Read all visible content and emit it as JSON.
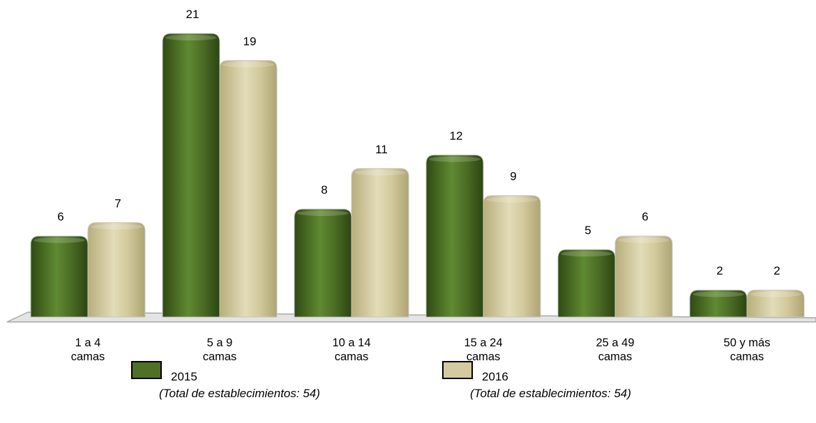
{
  "chart_data": {
    "type": "bar",
    "categories": [
      [
        "1 a 4",
        "camas"
      ],
      [
        "5 a 9",
        "camas"
      ],
      [
        "10 a 14",
        "camas"
      ],
      [
        "15 a 24",
        "camas"
      ],
      [
        "25 a 49",
        "camas"
      ],
      [
        "50 y más",
        "camas"
      ]
    ],
    "series": [
      {
        "name": "2015",
        "note": "(Total de establecimientos: 54)",
        "color": "#4e7127",
        "values": [
          6,
          21,
          8,
          12,
          5,
          2
        ]
      },
      {
        "name": "2016",
        "note": "(Total de establecimientos: 54)",
        "color": "#d3cb9f",
        "values": [
          7,
          19,
          11,
          9,
          6,
          2
        ]
      }
    ],
    "ylim": [
      0,
      21
    ],
    "data_labels": true,
    "legend_position": "bottom",
    "grid": false
  }
}
